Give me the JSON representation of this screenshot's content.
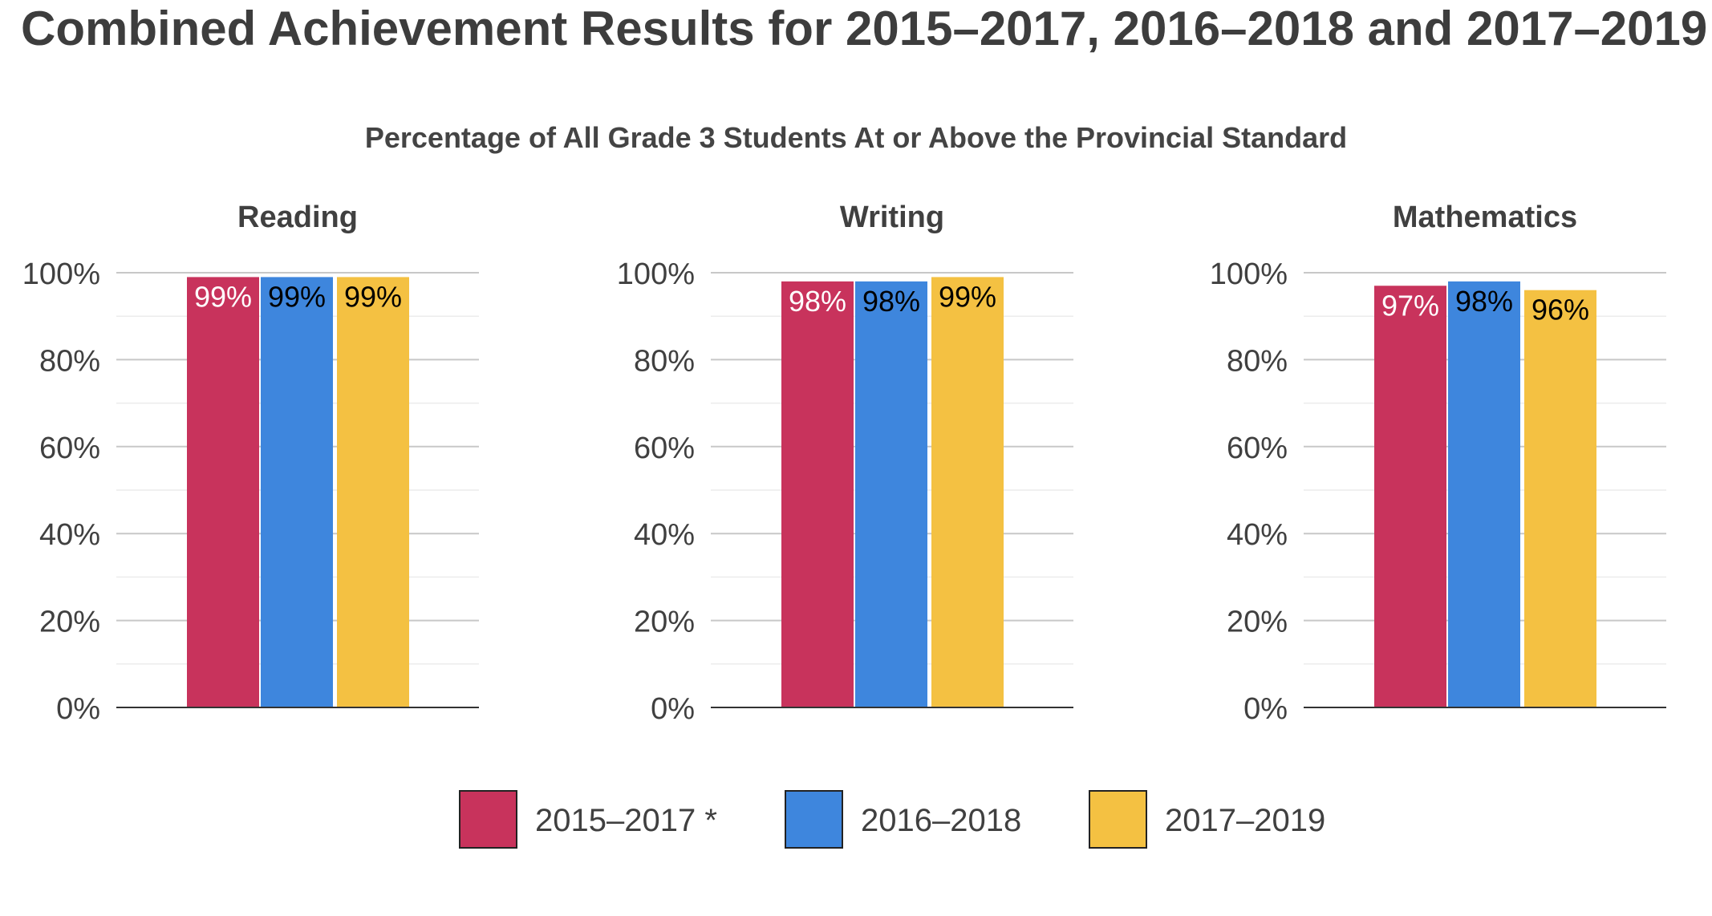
{
  "title": "Combined Achievement Results for 2015–2017, 2016–2018 and 2017–2019",
  "chart_data": {
    "type": "bar",
    "title": "Percentage of All Grade 3 Students At or Above the Provincial Standard",
    "ylim": [
      0,
      100
    ],
    "yticks": [
      0,
      20,
      40,
      60,
      80,
      100
    ],
    "ytick_labels": [
      "0%",
      "20%",
      "40%",
      "60%",
      "80%",
      "100%"
    ],
    "grid": true,
    "legend_position": "bottom",
    "series": [
      {
        "name": "2015–2017 *",
        "color": "#c8335c",
        "label_color": "#ffffff"
      },
      {
        "name": "2016–2018",
        "color": "#3e86dd",
        "label_color": "#000000"
      },
      {
        "name": "2017–2019",
        "color": "#f4c142",
        "label_color": "#000000"
      }
    ],
    "panels": [
      {
        "title": "Reading",
        "values": [
          99,
          99,
          99
        ],
        "labels": [
          "99%",
          "99%",
          "99%"
        ]
      },
      {
        "title": "Writing",
        "values": [
          98,
          98,
          99
        ],
        "labels": [
          "98%",
          "98%",
          "99%"
        ]
      },
      {
        "title": "Mathematics",
        "values": [
          97,
          98,
          96
        ],
        "labels": [
          "97%",
          "98%",
          "96%"
        ]
      }
    ]
  }
}
